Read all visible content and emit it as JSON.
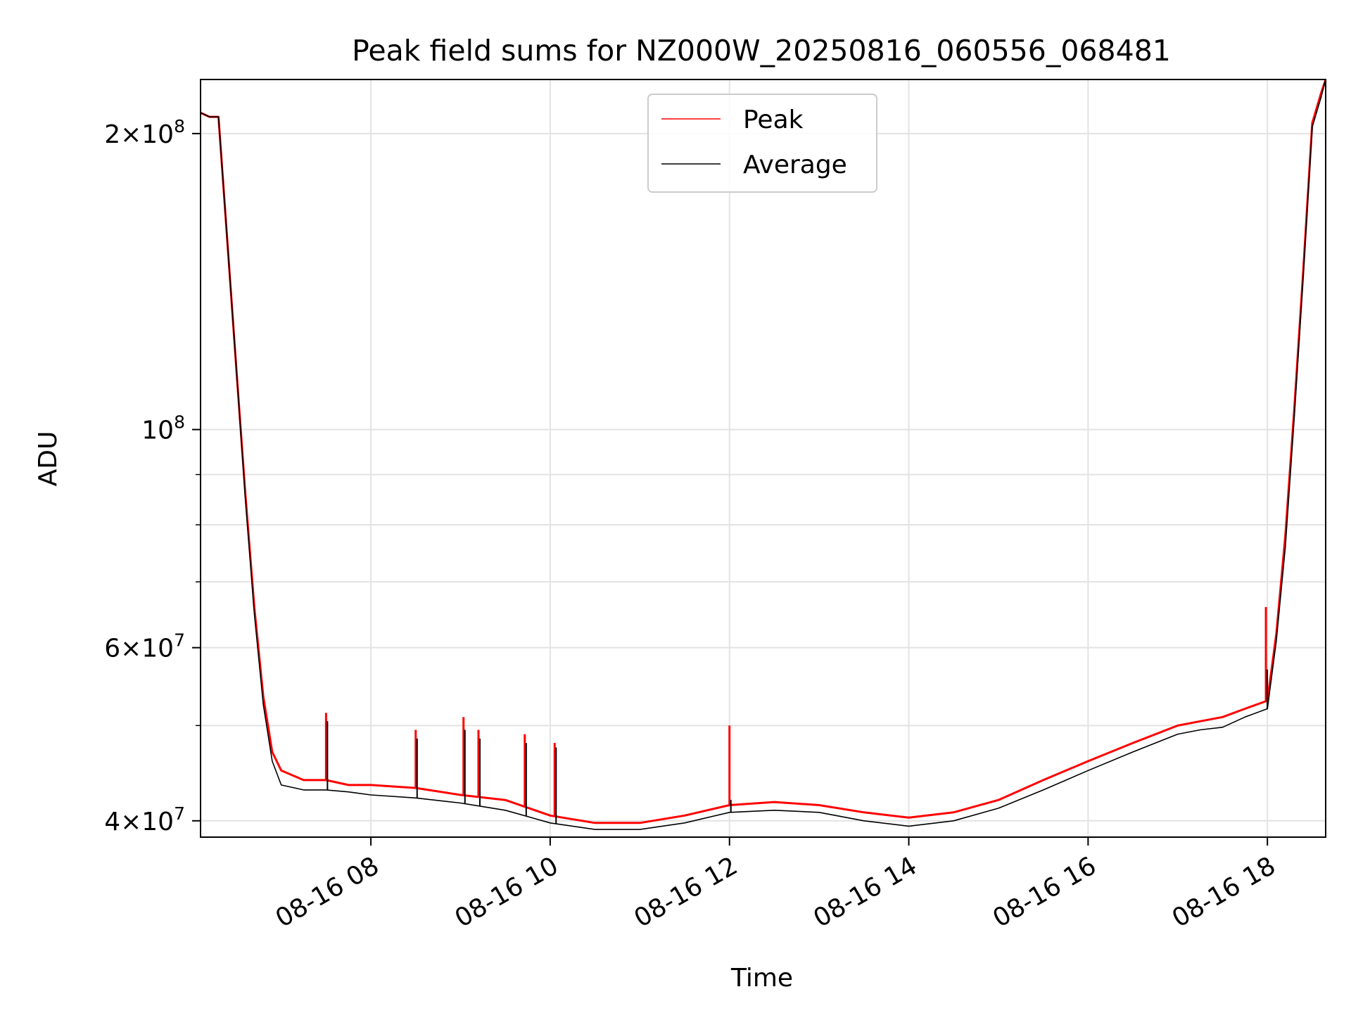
{
  "chart_data": {
    "type": "line",
    "title": "Peak field sums for NZ000W_20250816_060556_068481",
    "xlabel": "Time",
    "ylabel": "ADU",
    "yscale": "log",
    "xlim": [
      "2025-08-16 06:06",
      "2025-08-16 18:39"
    ],
    "ylim": [
      38500000,
      227000000
    ],
    "grid": true,
    "legend": "upper center",
    "x_ticks": [
      "2025-08-16 08:00",
      "2025-08-16 10:00",
      "2025-08-16 12:00",
      "2025-08-16 14:00",
      "2025-08-16 16:00",
      "2025-08-16 18:00"
    ],
    "x_tick_labels": [
      "08-16 08",
      "08-16 10",
      "08-16 12",
      "08-16 14",
      "08-16 16",
      "08-16 18"
    ],
    "y_tick_values": [
      40000000,
      60000000,
      100000000,
      200000000
    ],
    "y_tick_mantissas": [
      "4",
      "6",
      "10",
      "2"
    ],
    "y_tick_prefixes": [
      "4×10",
      "6×10",
      "10",
      "2×10"
    ],
    "y_tick_exponents": [
      "7",
      "7",
      "8",
      "8"
    ],
    "x": [
      "2025-08-16 06:06",
      "2025-08-16 06:12",
      "2025-08-16 06:18",
      "2025-08-16 06:24",
      "2025-08-16 06:30",
      "2025-08-16 06:36",
      "2025-08-16 06:42",
      "2025-08-16 06:48",
      "2025-08-16 06:54",
      "2025-08-16 07:00",
      "2025-08-16 07:15",
      "2025-08-16 07:30",
      "2025-08-16 07:45",
      "2025-08-16 08:00",
      "2025-08-16 08:30",
      "2025-08-16 09:00",
      "2025-08-16 09:30",
      "2025-08-16 10:00",
      "2025-08-16 10:30",
      "2025-08-16 11:00",
      "2025-08-16 11:30",
      "2025-08-16 12:00",
      "2025-08-16 12:30",
      "2025-08-16 13:00",
      "2025-08-16 13:30",
      "2025-08-16 14:00",
      "2025-08-16 14:30",
      "2025-08-16 15:00",
      "2025-08-16 15:30",
      "2025-08-16 16:00",
      "2025-08-16 16:30",
      "2025-08-16 17:00",
      "2025-08-16 17:15",
      "2025-08-16 17:30",
      "2025-08-16 17:45",
      "2025-08-16 18:00",
      "2025-08-16 18:06",
      "2025-08-16 18:12",
      "2025-08-16 18:18",
      "2025-08-16 18:24",
      "2025-08-16 18:30",
      "2025-08-16 18:36",
      "2025-08-16 18:39"
    ],
    "series": [
      {
        "name": "Peak",
        "color": "#ff0000",
        "values": [
          210000000,
          208000000,
          208000000,
          155000000,
          115000000,
          86000000,
          66000000,
          53500000,
          47000000,
          45000000,
          44000000,
          44000000,
          43500000,
          43500000,
          43200000,
          42500000,
          42000000,
          40500000,
          39800000,
          39800000,
          40500000,
          41500000,
          41800000,
          41500000,
          40800000,
          40300000,
          40800000,
          42000000,
          44000000,
          46000000,
          48000000,
          50000000,
          50500000,
          51000000,
          52000000,
          53000000,
          62000000,
          78000000,
          105000000,
          145000000,
          205000000,
          220000000,
          227000000
        ]
      },
      {
        "name": "Average",
        "color": "#000000",
        "values": [
          210000000,
          208000000,
          208000000,
          155000000,
          115000000,
          85000000,
          65000000,
          52500000,
          46000000,
          43500000,
          43000000,
          43000000,
          42800000,
          42500000,
          42200000,
          41700000,
          41000000,
          39800000,
          39200000,
          39200000,
          39800000,
          40800000,
          41000000,
          40800000,
          40000000,
          39500000,
          40000000,
          41200000,
          43000000,
          45000000,
          47000000,
          49000000,
          49500000,
          49800000,
          51000000,
          52000000,
          61000000,
          76000000,
          103000000,
          143000000,
          203000000,
          218000000,
          227000000
        ]
      }
    ],
    "spikes": [
      {
        "x": "2025-08-16 07:30",
        "peak": 51500000,
        "average": 50500000
      },
      {
        "x": "2025-08-16 08:30",
        "peak": 49500000,
        "average": 48500000
      },
      {
        "x": "2025-08-16 09:02",
        "peak": 51000000,
        "average": 49500000
      },
      {
        "x": "2025-08-16 09:12",
        "peak": 49500000,
        "average": 48500000
      },
      {
        "x": "2025-08-16 09:43",
        "peak": 49000000,
        "average": 48000000
      },
      {
        "x": "2025-08-16 10:03",
        "peak": 48000000,
        "average": 47500000
      },
      {
        "x": "2025-08-16 12:00",
        "peak": 50000000,
        "average": 42000000
      },
      {
        "x": "2025-08-16 17:59",
        "peak": 66000000,
        "average": 57000000
      }
    ]
  }
}
